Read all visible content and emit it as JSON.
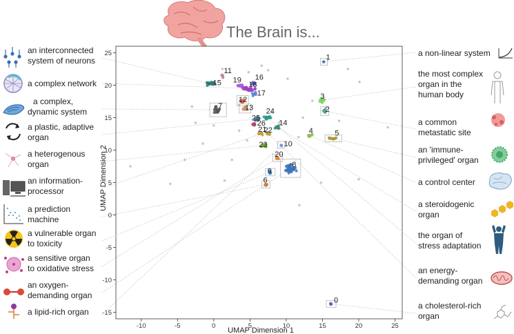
{
  "chart_data": {
    "type": "scatter",
    "title": "The Brain is...",
    "xlabel": "UMAP Dimension 1",
    "ylabel": "UMAP Dimension 2",
    "xlim": [
      -13.5,
      26
    ],
    "ylim": [
      -16,
      26
    ],
    "xticks": [
      -10,
      -5,
      0,
      5,
      10,
      15,
      20,
      25
    ],
    "yticks": [
      -15,
      -10,
      -5,
      0,
      5,
      10,
      15,
      20,
      25
    ],
    "clusters": [
      {
        "id": "0",
        "x": 16.2,
        "y": -13.7,
        "color": "#5b6fc7",
        "spread": [
          0.4,
          0.25
        ],
        "n": 6
      },
      {
        "id": "1",
        "x": 15.2,
        "y": 23.6,
        "color": "#4a6fb5",
        "spread": [
          0.15,
          0.15
        ],
        "n": 2
      },
      {
        "id": "2",
        "x": 15.3,
        "y": 16.0,
        "color": "#5aa58f",
        "spread": [
          0.3,
          0.4
        ],
        "n": 7
      },
      {
        "id": "3",
        "x": 15.0,
        "y": 17.7,
        "color": "#7ed36a",
        "spread": [
          0.5,
          0.5
        ],
        "n": 14
      },
      {
        "id": "4",
        "x": 13.3,
        "y": 12.2,
        "color": "#8fbe5a",
        "spread": [
          0.6,
          0.3
        ],
        "n": 8
      },
      {
        "id": "5",
        "x": 16.5,
        "y": 11.8,
        "color": "#a89a3a",
        "spread": [
          0.8,
          0.2
        ],
        "n": 10
      },
      {
        "id": "6",
        "x": 7.2,
        "y": 4.7,
        "color": "#d07a3a",
        "spread": [
          0.3,
          0.3
        ],
        "n": 6
      },
      {
        "id": "7",
        "x": 0.6,
        "y": 16.2,
        "color": "#555555",
        "spread": [
          0.8,
          0.7
        ],
        "n": 16
      },
      {
        "id": "8",
        "x": 10.6,
        "y": 7.2,
        "color": "#3a72b5",
        "spread": [
          1.0,
          1.0
        ],
        "n": 30
      },
      {
        "id": "9",
        "x": 7.8,
        "y": 6.6,
        "color": "#2e8fe0",
        "spread": [
          0.4,
          0.3
        ],
        "n": 6
      },
      {
        "id": "10",
        "x": 9.3,
        "y": 10.8,
        "color": "#7b8fd6",
        "spread": [
          0.25,
          0.25
        ],
        "n": 3
      },
      {
        "id": "11",
        "x": 1.2,
        "y": 21.3,
        "color": "#c08a9a",
        "spread": [
          0.3,
          0.4
        ],
        "n": 6
      },
      {
        "id": "12",
        "x": 4.0,
        "y": 17.6,
        "color": "#e06a4a",
        "spread": [
          0.5,
          0.5
        ],
        "n": 10
      },
      {
        "id": "13",
        "x": 4.3,
        "y": 16.4,
        "color": "#d6906a",
        "spread": [
          0.5,
          0.4
        ],
        "n": 10
      },
      {
        "id": "14",
        "x": 8.8,
        "y": 13.5,
        "color": "#3a8a7a",
        "spread": [
          0.5,
          0.3
        ],
        "n": 8
      },
      {
        "id": "15",
        "x": -0.3,
        "y": 20.2,
        "color": "#2e7a78",
        "spread": [
          0.8,
          0.4
        ],
        "n": 22
      },
      {
        "id": "16",
        "x": 5.5,
        "y": 20.2,
        "color": "#6a5ac8",
        "spread": [
          0.4,
          0.4
        ],
        "n": 10
      },
      {
        "id": "17",
        "x": 5.6,
        "y": 18.6,
        "color": "#5a8ad0",
        "spread": [
          0.4,
          0.4
        ],
        "n": 10
      },
      {
        "id": "18",
        "x": 4.8,
        "y": 19.5,
        "color": "#a040c8",
        "spread": [
          1.2,
          0.5
        ],
        "n": 28
      },
      {
        "id": "19",
        "x": 3.6,
        "y": 20.0,
        "color": "#b05ad0",
        "spread": [
          0.5,
          0.5
        ],
        "n": 10
      },
      {
        "id": "20",
        "x": 8.8,
        "y": 8.8,
        "color": "#e08a3a",
        "spread": [
          0.4,
          0.3
        ],
        "n": 8
      },
      {
        "id": "21",
        "x": 6.5,
        "y": 12.5,
        "color": "#d09a30",
        "spread": [
          0.4,
          0.3
        ],
        "n": 8
      },
      {
        "id": "22",
        "x": 7.5,
        "y": 12.6,
        "color": "#b8a040",
        "spread": [
          0.4,
          0.3
        ],
        "n": 8
      },
      {
        "id": "23",
        "x": 6.8,
        "y": 10.7,
        "color": "#7ab040",
        "spread": [
          0.6,
          0.4
        ],
        "n": 14
      },
      {
        "id": "24",
        "x": 7.4,
        "y": 15.0,
        "color": "#2a9a8a",
        "spread": [
          0.7,
          0.4
        ],
        "n": 16
      },
      {
        "id": "25",
        "x": 6.0,
        "y": 14.8,
        "color": "#4a7fa0",
        "spread": [
          0.5,
          0.4
        ],
        "n": 12
      },
      {
        "id": "26",
        "x": 5.6,
        "y": 14.0,
        "color": "#a84a6a",
        "spread": [
          0.4,
          0.3
        ],
        "n": 8
      }
    ],
    "outliers": [
      [
        1.2,
        22.5
      ],
      [
        4.8,
        22.0
      ],
      [
        7.5,
        22.3
      ],
      [
        8.0,
        15.8
      ],
      [
        11.7,
        12.0
      ],
      [
        13.6,
        17.6
      ],
      [
        -3.0,
        16.7
      ],
      [
        -6.0,
        4.8
      ],
      [
        -11.5,
        7.5
      ],
      [
        -2.5,
        14.2
      ],
      [
        17.3,
        14.5
      ],
      [
        20.1,
        20.5
      ],
      [
        24.0,
        13.5
      ],
      [
        20.0,
        5.5
      ],
      [
        11.8,
        1.5
      ],
      [
        14.8,
        5.0
      ],
      [
        12.3,
        15.0
      ],
      [
        3.5,
        13.0
      ],
      [
        2.5,
        8.5
      ],
      [
        1.5,
        5.3
      ],
      [
        4.6,
        11.5
      ],
      [
        10.2,
        21.0
      ],
      [
        9.0,
        14.2
      ],
      [
        3.5,
        17.0
      ],
      [
        0.0,
        13.8
      ],
      [
        -1.5,
        11.0
      ],
      [
        -4.0,
        8.5
      ],
      [
        6.6,
        23.0
      ],
      [
        18.5,
        22.5
      ]
    ],
    "boxed_clusters": [
      "0",
      "1",
      "2",
      "5",
      "6",
      "7",
      "8",
      "9",
      "10",
      "12",
      "13",
      "20"
    ]
  },
  "annotations": {
    "neurons": [
      "an interconnected",
      "system of neurons"
    ],
    "network": [
      "a complex network"
    ],
    "dynamic": [
      "a complex,",
      "dynamic system"
    ],
    "plastic": [
      "a plastic, adaptive",
      "organ"
    ],
    "heterogenous": [
      "a heterogenous",
      "organ"
    ],
    "processor": [
      "an information-",
      "processor"
    ],
    "prediction": [
      "a prediction",
      "machine"
    ],
    "vulnerable": [
      "a vulnerable organ",
      "to toxicity"
    ],
    "oxidative": [
      "a sensitive organ",
      "to oxidative stress"
    ],
    "oxygen": [
      "an oxygen-",
      "demanding organ"
    ],
    "lipid": [
      "a lipid-rich organ"
    ],
    "nonlinear": [
      "a non-linear system"
    ],
    "complex_organ": [
      "the most complex",
      "organ in the",
      "human body"
    ],
    "metastatic": [
      "a common",
      "metastatic site"
    ],
    "immune": [
      "an 'immune-",
      "privileged' organ"
    ],
    "control": [
      "a control center"
    ],
    "steroidogenic": [
      "a steroidogenic",
      "organ"
    ],
    "stress": [
      "the organ of",
      "stress adaptation"
    ],
    "energy": [
      "an energy-",
      "demanding organ"
    ],
    "cholesterol": [
      "a cholesterol-rich",
      "organ"
    ]
  }
}
